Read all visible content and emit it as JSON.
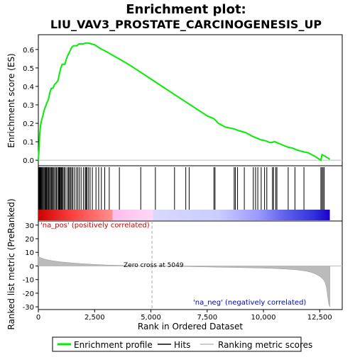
{
  "chart_data": {
    "type": "line",
    "title": "Enrichment plot:",
    "subtitle": "LIU_VAV3_PROSTATE_CARCINOGENESIS_UP",
    "panels": {
      "es": {
        "ylabel": "Enrichment score (ES)",
        "ylim": [
          -0.03,
          0.68
        ],
        "yticks": [
          0.0,
          0.1,
          0.2,
          0.3,
          0.4,
          0.5,
          0.6
        ],
        "ytick_labels": [
          "0.0",
          "0.1",
          "0.2",
          "0.3",
          "0.4",
          "0.5",
          "0.6"
        ]
      },
      "metric": {
        "ylabel": "Ranked list metric (PreRanked)",
        "ylim": [
          -32,
          33
        ],
        "yticks": [
          -30,
          -20,
          -10,
          0,
          10,
          20,
          30
        ],
        "ytick_labels": [
          "-30",
          "-20",
          "-10",
          "0",
          "10",
          "20",
          "30"
        ]
      }
    },
    "xlabel": "Rank in Ordered Dataset",
    "xlim": [
      0,
      13500
    ],
    "xticks": [
      0,
      2500,
      5000,
      7500,
      10000,
      12500
    ],
    "xtick_labels": [
      "0",
      "2,500",
      "5,000",
      "7,500",
      "10,000",
      "12,500"
    ],
    "es_profile": {
      "x": [
        0,
        30,
        60,
        100,
        150,
        200,
        260,
        320,
        380,
        450,
        520,
        580,
        650,
        720,
        800,
        870,
        940,
        1000,
        1060,
        1120,
        1180,
        1250,
        1320,
        1400,
        1480,
        1560,
        1640,
        1720,
        1800,
        1900,
        2000,
        2100,
        2200,
        2350,
        2500,
        2750,
        3000,
        3500,
        4000,
        4500,
        5000,
        5500,
        6000,
        6500,
        7000,
        7500,
        7800,
        8000,
        8300,
        8700,
        8900,
        9200,
        9500,
        9700,
        9900,
        10100,
        10300,
        10500,
        10800,
        11100,
        11300,
        11500,
        11800,
        12000,
        12300,
        12550,
        12600,
        12700,
        12950
      ],
      "y": [
        0.0,
        0.06,
        0.14,
        0.19,
        0.22,
        0.24,
        0.27,
        0.29,
        0.31,
        0.33,
        0.37,
        0.39,
        0.39,
        0.41,
        0.42,
        0.43,
        0.47,
        0.5,
        0.52,
        0.52,
        0.52,
        0.55,
        0.57,
        0.59,
        0.61,
        0.62,
        0.62,
        0.62,
        0.63,
        0.63,
        0.63,
        0.635,
        0.635,
        0.63,
        0.625,
        0.605,
        0.59,
        0.555,
        0.52,
        0.48,
        0.44,
        0.4,
        0.36,
        0.32,
        0.28,
        0.24,
        0.225,
        0.2,
        0.18,
        0.17,
        0.16,
        0.15,
        0.13,
        0.12,
        0.11,
        0.105,
        0.095,
        0.1,
        0.085,
        0.07,
        0.065,
        0.055,
        0.045,
        0.04,
        0.02,
        0.0,
        0.03,
        0.025,
        0.005
      ]
    },
    "hits_x": [
      20,
      40,
      60,
      80,
      100,
      120,
      140,
      180,
      210,
      250,
      290,
      320,
      350,
      380,
      420,
      460,
      500,
      540,
      580,
      620,
      660,
      700,
      760,
      800,
      850,
      900,
      930,
      960,
      1000,
      1030,
      1060,
      1100,
      1150,
      1200,
      1280,
      1340,
      1380,
      1430,
      1480,
      1530,
      1600,
      1680,
      1750,
      1820,
      1900,
      2000,
      2080,
      2120,
      2160,
      2230,
      2300,
      2400,
      2560,
      2680,
      2800,
      2950,
      3150,
      3600,
      4550,
      5200,
      6050,
      6550,
      6700,
      7800,
      7850,
      8700,
      8750,
      8850,
      9150,
      9550,
      9650,
      9750,
      9900,
      10050,
      10150,
      10400,
      10450,
      10550,
      10600,
      11100,
      11400,
      11800,
      12550,
      12600,
      12650,
      12700
    ],
    "metric_profile": {
      "x": [
        0,
        100,
        300,
        600,
        1000,
        1500,
        2000,
        2500,
        3000,
        4000,
        5049,
        6000,
        7000,
        8000,
        9000,
        10000,
        10500,
        11000,
        11500,
        11900,
        12100,
        12300,
        12500,
        12650,
        12750,
        12800,
        12850,
        12900,
        12950
      ],
      "y": [
        7.0,
        6.0,
        4.9,
        3.9,
        3.0,
        2.2,
        1.6,
        1.1,
        0.7,
        0.3,
        0.0,
        -0.3,
        -0.6,
        -0.9,
        -1.2,
        -1.6,
        -1.9,
        -2.3,
        -2.9,
        -3.8,
        -4.6,
        -5.8,
        -7.6,
        -9.8,
        -12.5,
        -16,
        -22,
        -28,
        -30
      ]
    },
    "annotations": {
      "zero_cross_label": "Zero cross at 5049",
      "zero_cross_x": 5049,
      "pos_label": "'na_pos' (positively correlated)",
      "neg_label": "'na_neg' (negatively correlated)"
    },
    "gradient_stops": [
      {
        "x": 0,
        "color": "#cc0000"
      },
      {
        "x": 1500,
        "color": "#ff4040"
      },
      {
        "x": 3300,
        "color": "#ff9090"
      },
      {
        "x": 3300,
        "color": "#ffbbee"
      },
      {
        "x": 5100,
        "color": "#ffd8f5"
      },
      {
        "x": 5100,
        "color": "#d8d8ff"
      },
      {
        "x": 8000,
        "color": "#ccccff"
      },
      {
        "x": 9800,
        "color": "#9999ff"
      },
      {
        "x": 10800,
        "color": "#6666ee"
      },
      {
        "x": 12200,
        "color": "#3333dd"
      },
      {
        "x": 12950,
        "color": "#1a00cc"
      }
    ],
    "legend": {
      "placement": "bottom",
      "entries": [
        {
          "label": "Enrichment profile",
          "color": "#00ee00"
        },
        {
          "label": "Hits",
          "color": "#000000"
        },
        {
          "label": "Ranking metric scores",
          "color": "#bbbbbb"
        }
      ]
    },
    "colors": {
      "es_line": "#00ee00",
      "hits": "#000000",
      "metric_fill": "#bbbbbb",
      "zero_line": "#bbbbbb",
      "neg_label": "#0000cc",
      "pos_label": "#cc0000"
    }
  }
}
